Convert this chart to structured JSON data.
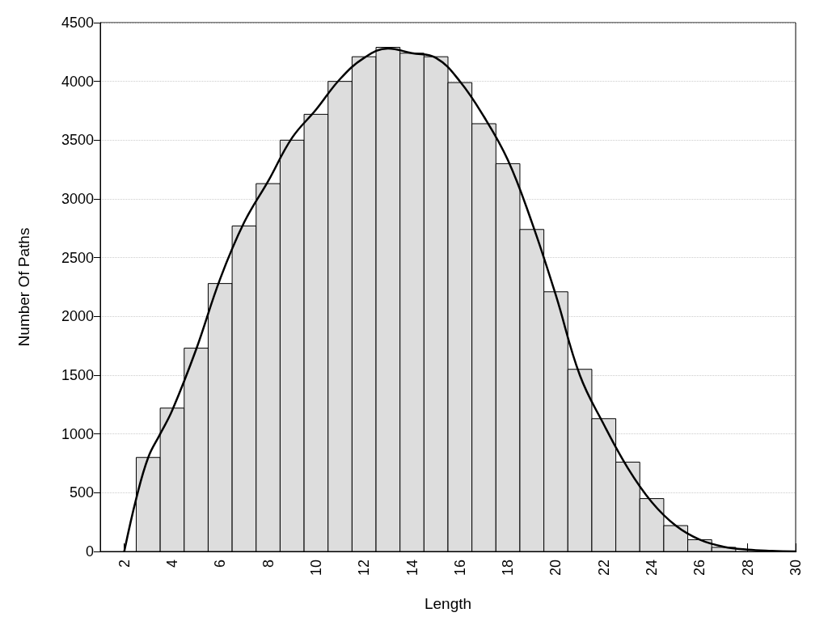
{
  "chart_data": {
    "type": "histogram",
    "xlabel": "Length",
    "ylabel": "Number Of Paths",
    "bins": [
      2.5,
      3.5,
      4.5,
      5.5,
      6.5,
      7.5,
      8.5,
      9.5,
      10.5,
      11.5,
      12.5,
      13.5,
      14.5,
      15.5,
      16.5,
      17.5,
      18.5,
      19.5,
      20.5,
      21.5,
      22.5,
      23.5,
      24.5,
      25.5,
      26.5,
      27.5
    ],
    "values": [
      800,
      1220,
      1730,
      2280,
      2770,
      3130,
      3500,
      3720,
      4000,
      4210,
      4290,
      4240,
      4210,
      3990,
      3640,
      3300,
      2740,
      2210,
      1550,
      1130,
      760,
      450,
      220,
      100,
      35
    ],
    "color": "#dddddd",
    "series": [
      {
        "type": "line",
        "color": "#000000",
        "x": [
          2,
          2.5,
          3,
          3.5,
          4,
          5,
          6,
          7,
          8,
          9,
          10,
          11,
          12,
          13,
          14,
          15,
          16,
          17,
          18,
          19,
          20,
          21,
          22,
          23,
          24,
          25,
          26,
          27,
          28,
          29,
          30
        ],
        "values": [
          0,
          450,
          800,
          1000,
          1200,
          1720,
          2320,
          2800,
          3150,
          3520,
          3760,
          4020,
          4200,
          4280,
          4240,
          4200,
          4000,
          3700,
          3330,
          2800,
          2180,
          1500,
          1080,
          710,
          420,
          220,
          100,
          40,
          15,
          5,
          0
        ]
      }
    ],
    "xlim": [
      1,
      30
    ],
    "xticks": [
      2,
      4,
      6,
      8,
      10,
      12,
      14,
      16,
      18,
      20,
      22,
      24,
      26,
      28,
      30
    ],
    "ylim": [
      0,
      4500
    ],
    "yticks": [
      0,
      500,
      1000,
      1500,
      2000,
      2500,
      3000,
      3500,
      4000,
      4500
    ],
    "grid": "y",
    "marker": "none",
    "line_style": "solid"
  }
}
